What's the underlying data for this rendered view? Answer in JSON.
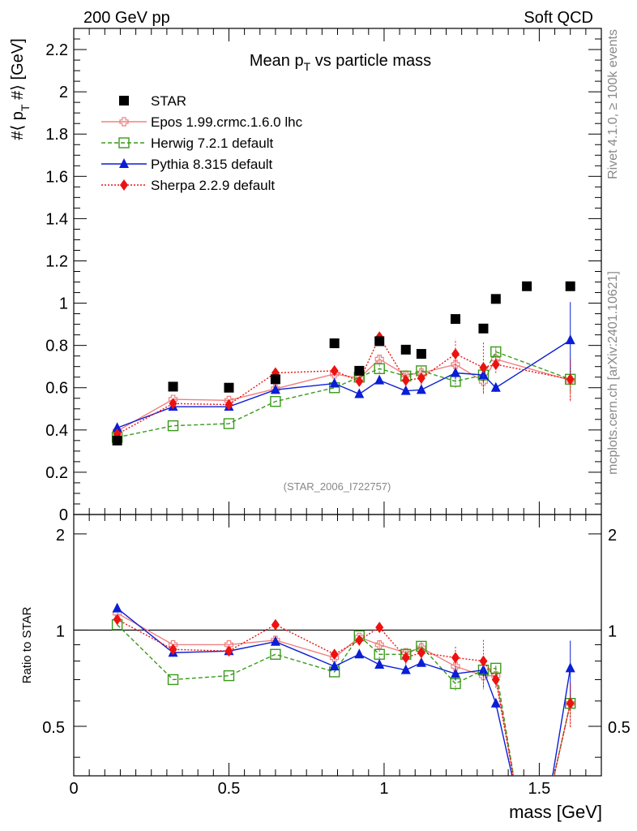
{
  "header": {
    "left": "200 GeV pp",
    "right": "Soft QCD"
  },
  "side": {
    "top": "Rivet 4.1.0, ≥ 100k events",
    "bottom": "mcplots.cern.ch [arXiv:2401.10621]"
  },
  "chart_data": {
    "type": "scatter",
    "title_main": "Mean p",
    "title_sub": "T",
    "title_rest": " vs particle mass",
    "ylabel_a": "#⟨ p",
    "ylabel_sub": "T",
    "ylabel_b": " #⟩ [GeV]",
    "xlabel": "mass [GeV]",
    "ratio_ylabel": "Ratio to STAR",
    "watermark": "(STAR_2006_I722757)",
    "xlim": [
      0,
      1.7
    ],
    "ylim": [
      0,
      2.3
    ],
    "ratio_ylim": [
      0.35,
      2.3
    ],
    "x_ticks": [
      {
        "v": 0,
        "label": "0"
      },
      {
        "v": 0.5,
        "label": "0.5"
      },
      {
        "v": 1,
        "label": "1"
      },
      {
        "v": 1.5,
        "label": "1.5"
      }
    ],
    "y_ticks": [
      {
        "v": 0,
        "label": "0"
      },
      {
        "v": 0.2,
        "label": "0.2"
      },
      {
        "v": 0.4,
        "label": "0.4"
      },
      {
        "v": 0.6,
        "label": "0.6"
      },
      {
        "v": 0.8,
        "label": "0.8"
      },
      {
        "v": 1,
        "label": "1"
      },
      {
        "v": 1.2,
        "label": "1.2"
      },
      {
        "v": 1.4,
        "label": "1.4"
      },
      {
        "v": 1.6,
        "label": "1.6"
      },
      {
        "v": 1.8,
        "label": "1.8"
      },
      {
        "v": 2,
        "label": "2"
      },
      {
        "v": 2.2,
        "label": "2.2"
      }
    ],
    "ratio_ticks": [
      {
        "v": 0.5,
        "label": "0.5"
      },
      {
        "v": 1,
        "label": "1"
      },
      {
        "v": 2,
        "label": "2"
      }
    ],
    "star": {
      "name": "STAR",
      "x": [
        0.14,
        0.32,
        0.5,
        0.65,
        0.84,
        0.92,
        0.985,
        1.07,
        1.12,
        1.23,
        1.32,
        1.36,
        1.46,
        1.6
      ],
      "y": [
        0.35,
        0.605,
        0.6,
        0.64,
        0.81,
        0.68,
        0.82,
        0.78,
        0.76,
        0.925,
        0.88,
        1.02,
        1.08,
        1.08
      ]
    },
    "series": [
      {
        "name": "Epos 1.99.crmc.1.6.0 lhc",
        "color": "#f08080",
        "dash": "",
        "marker": "cross-open",
        "x": [
          0.14,
          0.32,
          0.5,
          0.65,
          0.84,
          0.92,
          0.985,
          1.07,
          1.12,
          1.23,
          1.32,
          1.36,
          1.6
        ],
        "y": [
          0.395,
          0.545,
          0.54,
          0.595,
          0.665,
          0.645,
          0.735,
          0.66,
          0.67,
          0.71,
          0.63,
          0.735,
          0.635
        ],
        "yerr": [
          0,
          0,
          0,
          0,
          0,
          0,
          0.02,
          0,
          0.02,
          0.03,
          0.06,
          0.05,
          0.1
        ],
        "ratio": [
          1.13,
          0.9,
          0.9,
          0.93,
          0.82,
          0.95,
          0.9,
          0.85,
          0.88,
          0.77,
          0.72,
          0.72,
          0.59
        ]
      },
      {
        "name": "Herwig 7.2.1 default",
        "color": "#3a9a1a",
        "dash": "5,3",
        "marker": "square-open",
        "x": [
          0.14,
          0.32,
          0.5,
          0.65,
          0.84,
          0.92,
          0.985,
          1.07,
          1.12,
          1.23,
          1.32,
          1.36,
          1.6
        ],
        "y": [
          0.365,
          0.42,
          0.43,
          0.535,
          0.6,
          0.65,
          0.69,
          0.655,
          0.68,
          0.63,
          0.66,
          0.77,
          0.64
        ],
        "yerr": [
          0,
          0,
          0,
          0,
          0,
          0,
          0.02,
          0.02,
          0.02,
          0.03,
          0.03,
          0.03,
          0.06
        ],
        "ratio": [
          1.04,
          0.7,
          0.72,
          0.84,
          0.74,
          0.96,
          0.84,
          0.84,
          0.89,
          0.68,
          0.75,
          0.76,
          0.59
        ]
      },
      {
        "name": "Pythia 8.315 default",
        "color": "#0a1ed6",
        "dash": "",
        "marker": "triangle",
        "x": [
          0.14,
          0.32,
          0.5,
          0.65,
          0.84,
          0.92,
          0.985,
          1.07,
          1.12,
          1.23,
          1.32,
          1.36,
          1.6
        ],
        "y": [
          0.41,
          0.51,
          0.51,
          0.59,
          0.62,
          0.57,
          0.635,
          0.585,
          0.59,
          0.67,
          0.66,
          0.6,
          0.825
        ],
        "yerr": [
          0,
          0,
          0,
          0,
          0,
          0,
          0,
          0,
          0,
          0.03,
          0.03,
          0.02,
          0.18
        ],
        "ratio": [
          1.17,
          0.85,
          0.86,
          0.92,
          0.77,
          0.84,
          0.78,
          0.75,
          0.79,
          0.73,
          0.75,
          0.59,
          0.76
        ]
      },
      {
        "name": "Sherpa 2.2.9 default",
        "color": "#ee1111",
        "dash": "2,2",
        "marker": "diamond",
        "x": [
          0.14,
          0.32,
          0.5,
          0.65,
          0.84,
          0.92,
          0.985,
          1.07,
          1.12,
          1.23,
          1.32,
          1.36,
          1.6
        ],
        "y": [
          0.38,
          0.525,
          0.52,
          0.67,
          0.68,
          0.63,
          0.84,
          0.635,
          0.645,
          0.76,
          0.695,
          0.71,
          0.64
        ],
        "yerr": [
          0,
          0,
          0,
          0,
          0,
          0,
          0.03,
          0.03,
          0.03,
          0.07,
          0.12,
          0.04,
          0.1
        ],
        "ratio": [
          1.08,
          0.87,
          0.86,
          1.04,
          0.84,
          0.93,
          1.02,
          0.82,
          0.85,
          0.82,
          0.8,
          0.7,
          0.59
        ]
      }
    ]
  }
}
